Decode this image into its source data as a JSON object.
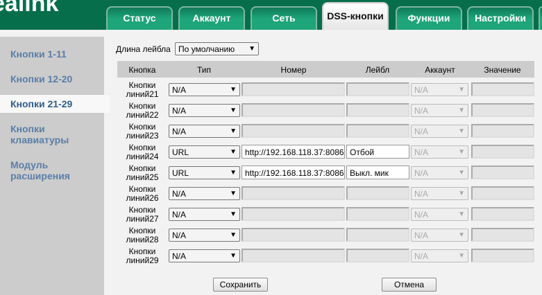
{
  "logo": "ealink",
  "tabs": [
    {
      "label": "Статус"
    },
    {
      "label": "Аккаунт"
    },
    {
      "label": "Сеть"
    },
    {
      "label": "DSS-кнопки"
    },
    {
      "label": "Функции"
    },
    {
      "label": "Настройки"
    },
    {
      "label": ""
    }
  ],
  "active_tab": "DSS-кнопки",
  "sidebar": {
    "items": [
      {
        "label": "Кнопки 1-11"
      },
      {
        "label": "Кнопки 12-20"
      },
      {
        "label": "Кнопки 21-29"
      },
      {
        "label": "Кнопки клавиатуры"
      },
      {
        "label": "Модуль расширения"
      }
    ],
    "active": "Кнопки 21-29"
  },
  "label_length": {
    "label": "Длина лейбла",
    "value": "По умолчанию"
  },
  "table": {
    "headers": [
      "Кнопка",
      "Тип",
      "Номер",
      "Лейбл",
      "Аккаунт",
      "Значение"
    ],
    "rows": [
      {
        "key": "Кнопки линий21",
        "type": "N/A",
        "number": "",
        "label": "",
        "account": "N/A",
        "value": ""
      },
      {
        "key": "Кнопки линий22",
        "type": "N/A",
        "number": "",
        "label": "",
        "account": "N/A",
        "value": ""
      },
      {
        "key": "Кнопки линий23",
        "type": "N/A",
        "number": "",
        "label": "",
        "account": "N/A",
        "value": ""
      },
      {
        "key": "Кнопки линий24",
        "type": "URL",
        "number": "http://192.168.118.37:8086",
        "label": "Отбой",
        "account": "N/A",
        "value": ""
      },
      {
        "key": "Кнопки линий25",
        "type": "URL",
        "number": "http://192.168.118.37:8086",
        "label": "Выкл. мик",
        "account": "N/A",
        "value": ""
      },
      {
        "key": "Кнопки линий26",
        "type": "N/A",
        "number": "",
        "label": "",
        "account": "N/A",
        "value": ""
      },
      {
        "key": "Кнопки линий27",
        "type": "N/A",
        "number": "",
        "label": "",
        "account": "N/A",
        "value": ""
      },
      {
        "key": "Кнопки линий28",
        "type": "N/A",
        "number": "",
        "label": "",
        "account": "N/A",
        "value": ""
      },
      {
        "key": "Кнопки линий29",
        "type": "N/A",
        "number": "",
        "label": "",
        "account": "N/A",
        "value": ""
      }
    ]
  },
  "buttons": {
    "save": "Сохранить",
    "cancel": "Отмена"
  }
}
